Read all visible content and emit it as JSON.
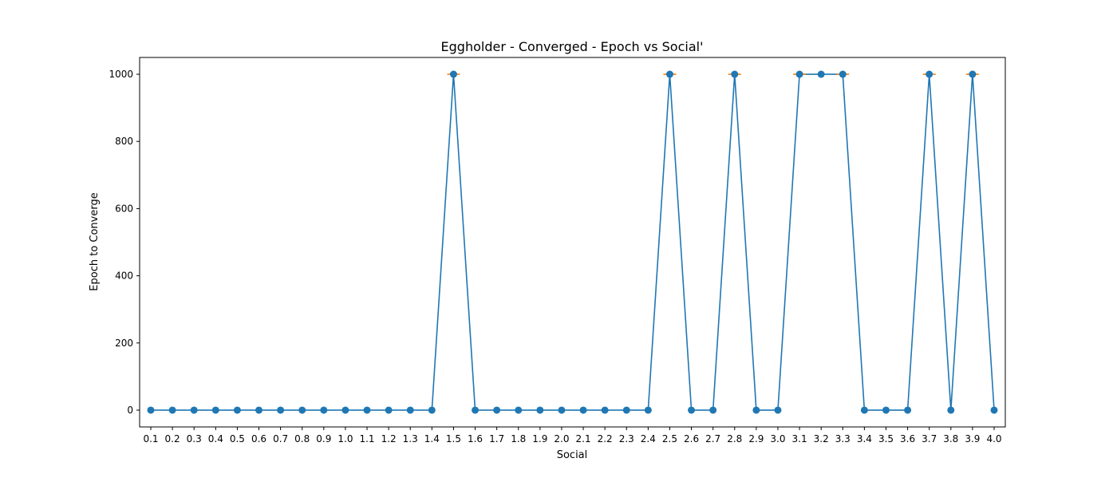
{
  "chart_data": {
    "type": "line",
    "title": "Eggholder - Converged - Epoch vs Social'",
    "xlabel": "Social",
    "ylabel": "Epoch to Converge",
    "x": [
      "0.1",
      "0.2",
      "0.3",
      "0.4",
      "0.5",
      "0.6",
      "0.7",
      "0.8",
      "0.9",
      "1.0",
      "1.1",
      "1.2",
      "1.3",
      "1.4",
      "1.5",
      "1.6",
      "1.7",
      "1.8",
      "1.9",
      "2.0",
      "2.1",
      "2.2",
      "2.3",
      "2.4",
      "2.5",
      "2.6",
      "2.7",
      "2.8",
      "2.9",
      "3.0",
      "3.1",
      "3.2",
      "3.3",
      "3.4",
      "3.5",
      "3.6",
      "3.7",
      "3.8",
      "3.9",
      "4.0"
    ],
    "series": [
      {
        "values": [
          0,
          0,
          0,
          0,
          0,
          0,
          0,
          0,
          0,
          0,
          0,
          0,
          0,
          0,
          1000,
          0,
          0,
          0,
          0,
          0,
          0,
          0,
          0,
          0,
          1000,
          0,
          0,
          1000,
          0,
          0,
          1000,
          1000,
          1000,
          0,
          0,
          0,
          1000,
          0,
          1000,
          0
        ],
        "color": "#1f77b4",
        "marker": "circle"
      },
      {
        "values": [
          null,
          null,
          null,
          null,
          null,
          null,
          null,
          null,
          null,
          null,
          null,
          null,
          null,
          null,
          1000,
          null,
          null,
          null,
          null,
          null,
          null,
          null,
          null,
          null,
          1000,
          null,
          null,
          1000,
          null,
          null,
          1000,
          null,
          1000,
          null,
          null,
          null,
          1000,
          null,
          1000,
          null
        ],
        "color": "#ff7f0e",
        "marker": "hline"
      }
    ],
    "yticks": [
      0,
      200,
      400,
      600,
      800,
      1000
    ],
    "ylim": [
      -50,
      1050
    ],
    "grid": false,
    "legend": "none"
  }
}
